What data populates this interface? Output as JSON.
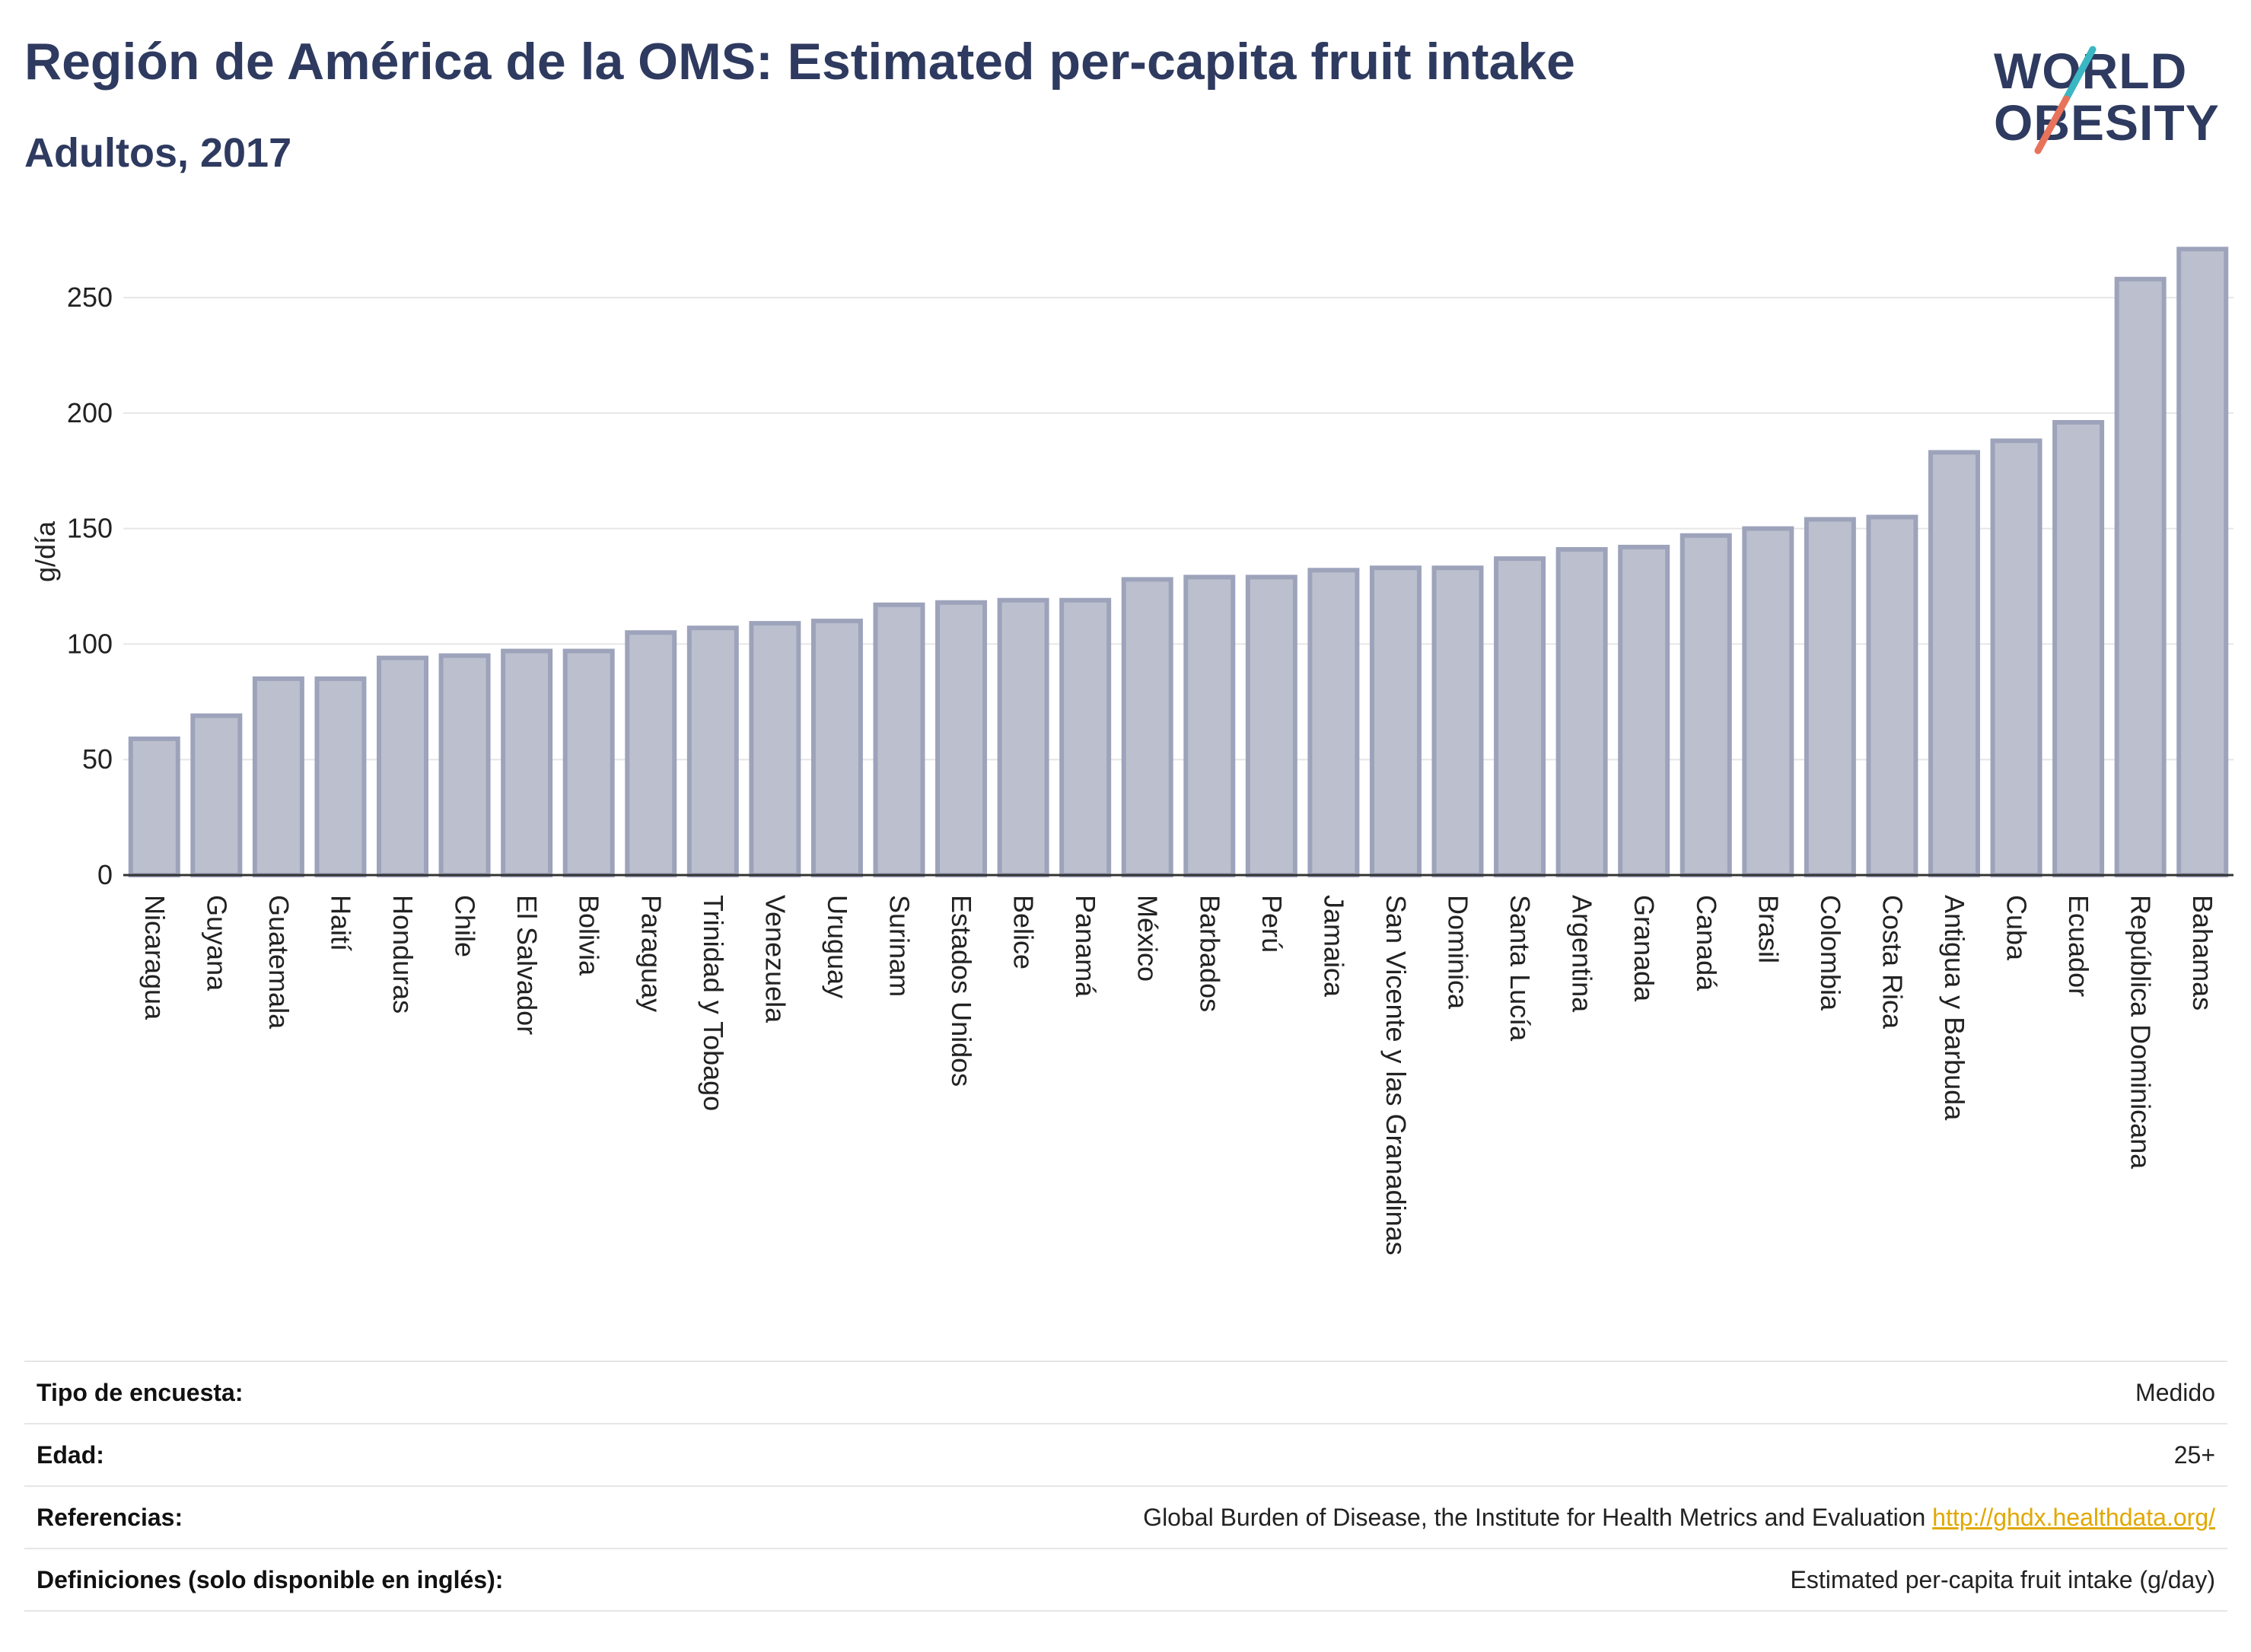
{
  "header": {
    "title": "Región de América de la OMS: Estimated per-capita fruit intake",
    "subtitle": "Adultos, 2017"
  },
  "logo": {
    "line1": "WORLD",
    "line2": "OBESITY",
    "accent_colors": [
      "#3ab7c2",
      "#e8735a"
    ]
  },
  "chart_data": {
    "type": "bar",
    "ylabel": "g/día",
    "ylim": [
      0,
      280
    ],
    "yticks": [
      0,
      50,
      100,
      150,
      200,
      250
    ],
    "grid": true,
    "bar_fill": "#bcc0ce",
    "bar_stroke": "#9da3ba",
    "categories": [
      "Nicaragua",
      "Guyana",
      "Guatemala",
      "Haití",
      "Honduras",
      "Chile",
      "El Salvador",
      "Bolivia",
      "Paraguay",
      "Trinidad y Tobago",
      "Venezuela",
      "Uruguay",
      "Surinam",
      "Estados Unidos",
      "Belice",
      "Panamá",
      "México",
      "Barbados",
      "Perú",
      "Jamaica",
      "San Vicente y las Granadinas",
      "Dominica",
      "Santa Lucía",
      "Argentina",
      "Granada",
      "Canadá",
      "Brasil",
      "Colombia",
      "Costa Rica",
      "Antigua y Barbuda",
      "Cuba",
      "Ecuador",
      "República Dominicana",
      "Bahamas"
    ],
    "values": [
      59,
      69,
      85,
      85,
      94,
      95,
      97,
      97,
      105,
      107,
      109,
      110,
      117,
      118,
      119,
      119,
      128,
      129,
      129,
      132,
      133,
      133,
      137,
      141,
      142,
      147,
      150,
      154,
      155,
      183,
      188,
      196,
      258,
      271
    ]
  },
  "info_table": {
    "rows": [
      {
        "key": "Tipo de encuesta:",
        "value": "Medido"
      },
      {
        "key": "Edad:",
        "value": "25+"
      },
      {
        "key": "Referencias:",
        "value": "Global Burden of Disease, the Institute for Health Metrics and Evaluation",
        "link": "http://ghdx.healthdata.org/"
      },
      {
        "key": "Definiciones (solo disponible en inglés):",
        "value": "Estimated per-capita fruit intake (g/day)"
      }
    ]
  }
}
